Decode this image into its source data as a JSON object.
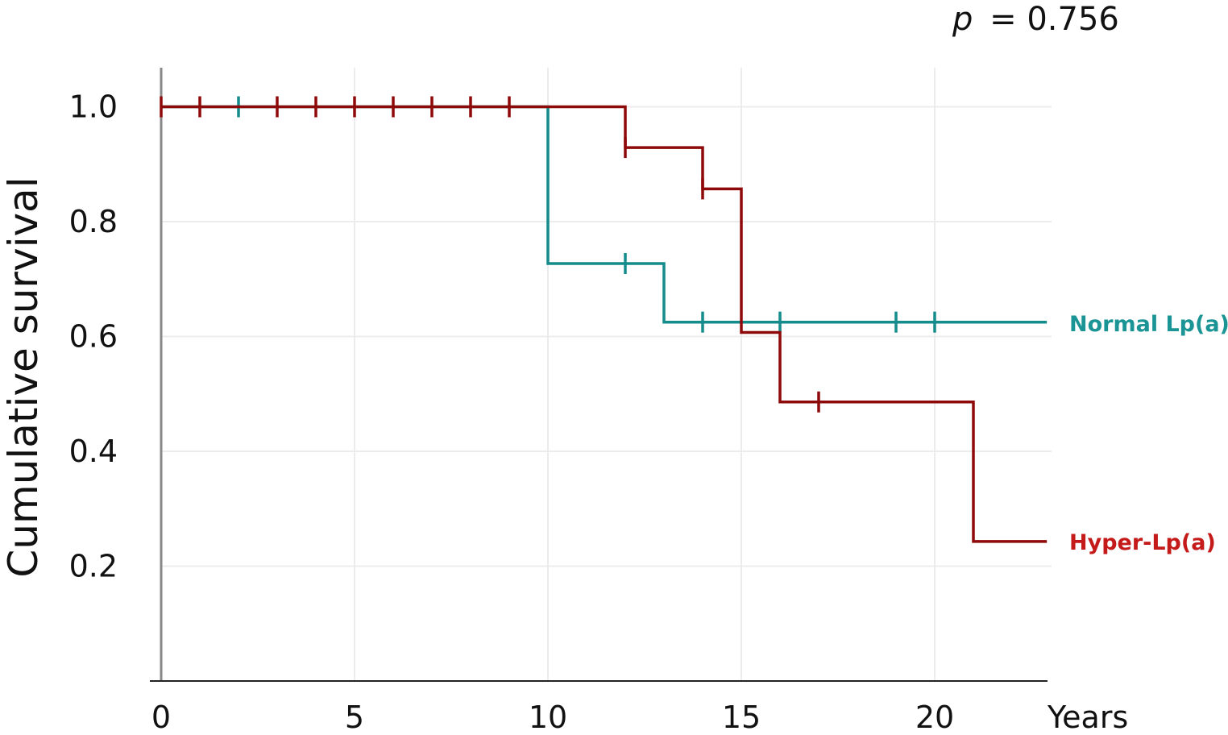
{
  "chart_data": {
    "type": "line",
    "subtype": "kaplan-meier step",
    "annotation": {
      "p_label": "p",
      "p_value": "= 0.756"
    },
    "ylabel": "Cumulative survival",
    "xlabel": "Years",
    "xlim": [
      0,
      23
    ],
    "ylim": [
      0,
      1.0
    ],
    "xticks": [
      "0",
      "5",
      "10",
      "15",
      "20"
    ],
    "xtick_values": [
      0,
      5,
      10,
      15,
      20
    ],
    "yticks": [
      "1.0",
      "0.8",
      "0.6",
      "0.4",
      "0.2"
    ],
    "ytick_values": [
      1.0,
      0.8,
      0.6,
      0.4,
      0.2
    ],
    "grid": true,
    "legend": "inline-right",
    "series": [
      {
        "name": "Normal Lp(a)",
        "color": "#158c8c",
        "label_color": "#1a9494",
        "steps": [
          [
            0,
            1.0
          ],
          [
            10,
            0.727
          ],
          [
            13,
            0.625
          ]
        ],
        "end_x": 22.9,
        "censored": [
          [
            2,
            1.0
          ],
          [
            12,
            0.727
          ],
          [
            14,
            0.625
          ],
          [
            16,
            0.625
          ],
          [
            19,
            0.625
          ],
          [
            20,
            0.625
          ]
        ]
      },
      {
        "name": "Hyper-Lp(a)",
        "color": "#8e0a0a",
        "label_color": "#c41a1a",
        "steps": [
          [
            0,
            1.0
          ],
          [
            12,
            0.929
          ],
          [
            14,
            0.857
          ],
          [
            15,
            0.607
          ],
          [
            16,
            0.486
          ],
          [
            21,
            0.243
          ]
        ],
        "end_x": 22.9,
        "censored": [
          [
            0,
            1.0
          ],
          [
            1,
            1.0
          ],
          [
            3,
            1.0
          ],
          [
            4,
            1.0
          ],
          [
            5,
            1.0
          ],
          [
            6,
            1.0
          ],
          [
            7,
            1.0
          ],
          [
            8,
            1.0
          ],
          [
            9,
            1.0
          ],
          [
            12,
            0.929
          ],
          [
            14,
            0.857
          ],
          [
            17,
            0.486
          ]
        ]
      }
    ]
  }
}
